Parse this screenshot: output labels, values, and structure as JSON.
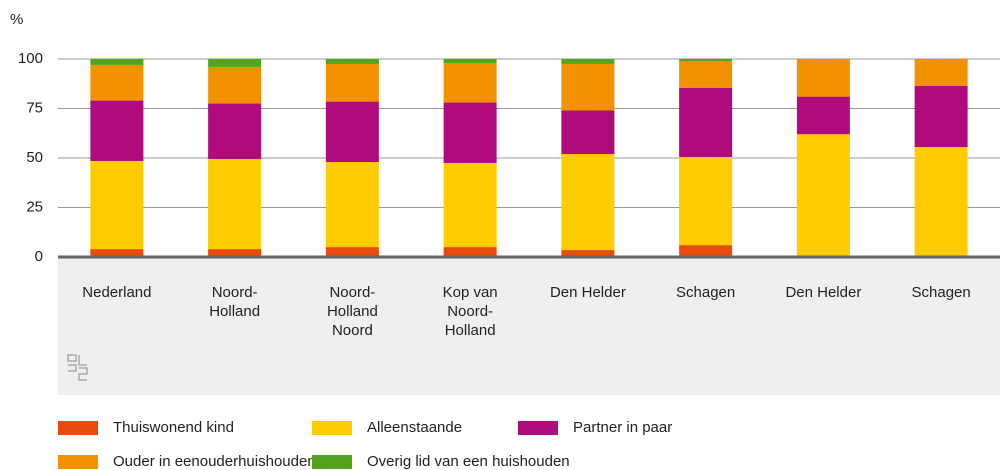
{
  "chart_data": {
    "type": "stacked_bar",
    "y_label": "%",
    "categories": [
      "Nederland",
      "Noord-\nHolland",
      "Noord-\nHolland\nNoord",
      "Kop van\nNoord-\nHolland",
      "Den Helder",
      "Schagen",
      "Den Helder",
      "Schagen"
    ],
    "series": [
      {
        "name": "Thuiswonend kind",
        "color": "#e94c0a",
        "values": [
          4,
          4,
          5,
          5,
          3.5,
          6,
          0,
          0
        ]
      },
      {
        "name": "Alleenstaande",
        "color": "#ffcc00",
        "values": [
          44.5,
          45.5,
          43,
          42.5,
          48.5,
          44.5,
          62,
          55.5
        ]
      },
      {
        "name": "Partner in paar",
        "color": "#af0b7c",
        "values": [
          30.5,
          28,
          30.5,
          30.5,
          22,
          35,
          19,
          31
        ]
      },
      {
        "name": "Ouder in eenouderhuishouden",
        "color": "#f39200",
        "values": [
          18,
          18.5,
          19,
          20,
          23.5,
          13.5,
          19,
          13.5
        ]
      },
      {
        "name": "Overig lid van een huishouden",
        "color": "#53a31d",
        "values": [
          3,
          4,
          2.5,
          2,
          2.5,
          1,
          0,
          0
        ]
      }
    ],
    "ylim": [
      0,
      100
    ],
    "yticks": [
      0,
      25,
      50,
      75,
      100
    ],
    "grid": true
  }
}
